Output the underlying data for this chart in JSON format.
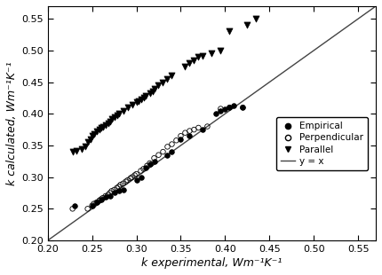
{
  "xlabel": "k experimental, Wm⁻¹K⁻¹",
  "ylabel": "k calculated, Wm⁻¹K⁻¹",
  "xlim": [
    0.2,
    0.57
  ],
  "ylim": [
    0.2,
    0.57
  ],
  "xticks": [
    0.2,
    0.25,
    0.3,
    0.35,
    0.4,
    0.45,
    0.5,
    0.55
  ],
  "yticks": [
    0.2,
    0.25,
    0.3,
    0.35,
    0.4,
    0.45,
    0.5,
    0.55
  ],
  "line_color": "#444444",
  "background_color": "#ffffff",
  "empirical_x": [
    0.23,
    0.25,
    0.255,
    0.26,
    0.265,
    0.27,
    0.275,
    0.28,
    0.285,
    0.3,
    0.305,
    0.31,
    0.315,
    0.32,
    0.335,
    0.34,
    0.35,
    0.36,
    0.375,
    0.39,
    0.395,
    0.4,
    0.405,
    0.41,
    0.42
  ],
  "empirical_y": [
    0.255,
    0.255,
    0.26,
    0.265,
    0.268,
    0.27,
    0.275,
    0.278,
    0.28,
    0.295,
    0.3,
    0.315,
    0.32,
    0.325,
    0.335,
    0.34,
    0.36,
    0.365,
    0.375,
    0.4,
    0.405,
    0.408,
    0.41,
    0.413,
    0.41
  ],
  "perpendicular_x": [
    0.228,
    0.245,
    0.25,
    0.252,
    0.255,
    0.258,
    0.26,
    0.262,
    0.265,
    0.268,
    0.27,
    0.272,
    0.275,
    0.278,
    0.28,
    0.282,
    0.285,
    0.288,
    0.29,
    0.293,
    0.295,
    0.298,
    0.3,
    0.305,
    0.308,
    0.312,
    0.315,
    0.32,
    0.325,
    0.33,
    0.335,
    0.34,
    0.345,
    0.35,
    0.355,
    0.36,
    0.365,
    0.37,
    0.38,
    0.395,
    0.405,
    0.42
  ],
  "perpendicular_y": [
    0.25,
    0.25,
    0.255,
    0.258,
    0.26,
    0.263,
    0.265,
    0.267,
    0.27,
    0.272,
    0.275,
    0.278,
    0.28,
    0.283,
    0.285,
    0.288,
    0.29,
    0.293,
    0.295,
    0.298,
    0.3,
    0.303,
    0.305,
    0.31,
    0.313,
    0.318,
    0.322,
    0.33,
    0.335,
    0.34,
    0.348,
    0.352,
    0.358,
    0.365,
    0.37,
    0.373,
    0.375,
    0.378,
    0.38,
    0.408,
    0.41,
    0.41
  ],
  "parallel_x": [
    0.228,
    0.232,
    0.238,
    0.242,
    0.245,
    0.248,
    0.25,
    0.252,
    0.255,
    0.258,
    0.26,
    0.262,
    0.265,
    0.268,
    0.27,
    0.272,
    0.275,
    0.278,
    0.28,
    0.285,
    0.29,
    0.295,
    0.3,
    0.302,
    0.305,
    0.308,
    0.31,
    0.315,
    0.318,
    0.32,
    0.325,
    0.33,
    0.335,
    0.34,
    0.355,
    0.36,
    0.365,
    0.37,
    0.375,
    0.385,
    0.395,
    0.405,
    0.425,
    0.435
  ],
  "parallel_y": [
    0.34,
    0.342,
    0.345,
    0.348,
    0.355,
    0.36,
    0.365,
    0.368,
    0.372,
    0.375,
    0.378,
    0.38,
    0.382,
    0.385,
    0.388,
    0.392,
    0.395,
    0.398,
    0.4,
    0.405,
    0.41,
    0.415,
    0.418,
    0.42,
    0.423,
    0.425,
    0.428,
    0.432,
    0.435,
    0.44,
    0.445,
    0.45,
    0.455,
    0.46,
    0.475,
    0.48,
    0.485,
    0.49,
    0.492,
    0.495,
    0.5,
    0.53,
    0.54,
    0.55
  ],
  "markersize": 4,
  "fontsize_axis": 9,
  "fontsize_tick": 8
}
